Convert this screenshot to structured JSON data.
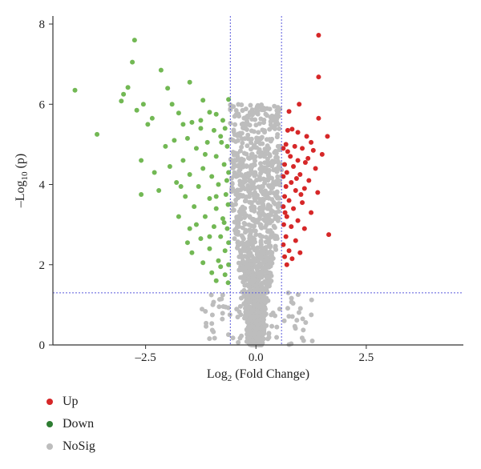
{
  "chart_data": {
    "type": "scatter",
    "title": "",
    "xlabel": "Log",
    "xlabel_sub": "2",
    "xlabel_suffix": " (Fold Change)",
    "ylabel": "–Log",
    "ylabel_sub": "10",
    "ylabel_suffix": " (p)",
    "xlim": [
      -4.6,
      4.7
    ],
    "ylim": [
      0,
      8.2
    ],
    "x_ticks": [
      -2.5,
      0.0,
      2.5
    ],
    "x_tick_labels": [
      "–2.5",
      "0.0",
      "2.5"
    ],
    "y_ticks": [
      0,
      2,
      4,
      6,
      8
    ],
    "y_tick_labels": [
      "0",
      "2",
      "4",
      "6",
      "8"
    ],
    "thresholds": {
      "x": [
        -0.58,
        0.58
      ],
      "y": 1.3
    },
    "grid": false,
    "legend_position": "bottom-left",
    "colors": {
      "Up": "#d62728",
      "Down": "#72b854",
      "NoSig": "#bdbdbd",
      "threshold": "#5a5adc"
    },
    "series": [
      {
        "name": "Up",
        "color": "#d62728",
        "points": [
          [
            1.42,
            7.72
          ],
          [
            1.42,
            6.68
          ],
          [
            0.98,
            6.0
          ],
          [
            0.75,
            5.82
          ],
          [
            1.42,
            5.65
          ],
          [
            0.72,
            5.35
          ],
          [
            0.82,
            5.38
          ],
          [
            0.95,
            5.3
          ],
          [
            1.15,
            5.2
          ],
          [
            1.62,
            5.2
          ],
          [
            1.25,
            5.05
          ],
          [
            0.68,
            5.0
          ],
          [
            0.88,
            4.95
          ],
          [
            1.05,
            4.9
          ],
          [
            1.3,
            4.85
          ],
          [
            0.62,
            4.9
          ],
          [
            1.5,
            4.75
          ],
          [
            0.78,
            4.7
          ],
          [
            0.95,
            4.6
          ],
          [
            1.12,
            4.55
          ],
          [
            0.65,
            4.5
          ],
          [
            0.85,
            4.45
          ],
          [
            1.35,
            4.4
          ],
          [
            0.7,
            4.3
          ],
          [
            1.0,
            4.25
          ],
          [
            0.62,
            4.2
          ],
          [
            1.2,
            4.1
          ],
          [
            0.8,
            4.05
          ],
          [
            0.68,
            3.95
          ],
          [
            1.1,
            3.9
          ],
          [
            0.9,
            3.85
          ],
          [
            1.4,
            3.8
          ],
          [
            0.65,
            3.7
          ],
          [
            0.75,
            3.6
          ],
          [
            1.05,
            3.55
          ],
          [
            0.62,
            3.45
          ],
          [
            0.85,
            3.4
          ],
          [
            1.25,
            3.3
          ],
          [
            0.7,
            3.2
          ],
          [
            0.95,
            3.1
          ],
          [
            0.63,
            3.0
          ],
          [
            0.8,
            2.95
          ],
          [
            1.1,
            2.9
          ],
          [
            1.65,
            2.75
          ],
          [
            0.68,
            2.7
          ],
          [
            0.9,
            2.6
          ],
          [
            0.62,
            2.5
          ],
          [
            0.75,
            2.35
          ],
          [
            1.0,
            2.3
          ],
          [
            0.65,
            2.2
          ],
          [
            0.82,
            2.15
          ],
          [
            0.7,
            2.0
          ],
          [
            1.02,
            3.75
          ],
          [
            0.72,
            4.82
          ],
          [
            1.18,
            4.65
          ],
          [
            0.92,
            4.15
          ],
          [
            0.66,
            3.3
          ]
        ]
      },
      {
        "name": "Down",
        "color": "#72b854",
        "points": [
          [
            -2.75,
            7.6
          ],
          [
            -4.1,
            6.35
          ],
          [
            -3.6,
            5.25
          ],
          [
            -2.8,
            7.05
          ],
          [
            -2.15,
            6.85
          ],
          [
            -2.9,
            6.42
          ],
          [
            -2.0,
            6.4
          ],
          [
            -1.5,
            6.55
          ],
          [
            -3.0,
            6.25
          ],
          [
            -3.05,
            6.08
          ],
          [
            -1.2,
            6.1
          ],
          [
            -2.55,
            6.0
          ],
          [
            -1.9,
            6.0
          ],
          [
            -0.62,
            6.12
          ],
          [
            -2.7,
            5.85
          ],
          [
            -1.75,
            5.78
          ],
          [
            -1.05,
            5.8
          ],
          [
            -2.35,
            5.65
          ],
          [
            -0.9,
            5.75
          ],
          [
            -1.45,
            5.55
          ],
          [
            -0.75,
            5.6
          ],
          [
            -1.65,
            5.5
          ],
          [
            -2.45,
            5.5
          ],
          [
            -1.25,
            5.4
          ],
          [
            -0.95,
            5.35
          ],
          [
            -0.7,
            5.4
          ],
          [
            -1.55,
            5.15
          ],
          [
            -1.85,
            5.1
          ],
          [
            -1.1,
            5.05
          ],
          [
            -0.8,
            5.2
          ],
          [
            -2.05,
            4.95
          ],
          [
            -1.35,
            4.9
          ],
          [
            -0.65,
            4.95
          ],
          [
            -2.6,
            4.6
          ],
          [
            -1.65,
            4.6
          ],
          [
            -0.9,
            4.7
          ],
          [
            -1.95,
            4.45
          ],
          [
            -1.2,
            4.4
          ],
          [
            -0.72,
            4.5
          ],
          [
            -1.5,
            4.25
          ],
          [
            -1.0,
            4.2
          ],
          [
            -0.62,
            4.3
          ],
          [
            -1.8,
            4.05
          ],
          [
            -2.2,
            3.85
          ],
          [
            -1.3,
            3.95
          ],
          [
            -0.85,
            4.0
          ],
          [
            -2.6,
            3.75
          ],
          [
            -1.6,
            3.7
          ],
          [
            -1.05,
            3.65
          ],
          [
            -0.68,
            3.75
          ],
          [
            -1.4,
            3.45
          ],
          [
            -0.9,
            3.4
          ],
          [
            -0.63,
            3.5
          ],
          [
            -1.75,
            3.2
          ],
          [
            -1.15,
            3.2
          ],
          [
            -0.75,
            3.15
          ],
          [
            -1.5,
            2.9
          ],
          [
            -0.95,
            2.95
          ],
          [
            -0.65,
            2.9
          ],
          [
            -1.25,
            2.65
          ],
          [
            -0.8,
            2.7
          ],
          [
            -0.62,
            2.55
          ],
          [
            -1.45,
            2.3
          ],
          [
            -1.05,
            2.4
          ],
          [
            -0.7,
            2.35
          ],
          [
            -1.2,
            2.05
          ],
          [
            -0.85,
            2.1
          ],
          [
            -0.62,
            2.0
          ],
          [
            -1.0,
            1.8
          ],
          [
            -0.7,
            1.75
          ],
          [
            -0.63,
            1.55
          ],
          [
            -0.9,
            1.6
          ],
          [
            -1.35,
            3.0
          ],
          [
            -1.55,
            2.55
          ],
          [
            -0.78,
            5.05
          ],
          [
            -1.15,
            4.75
          ],
          [
            -0.66,
            4.1
          ],
          [
            -2.3,
            4.3
          ],
          [
            -1.7,
            3.95
          ],
          [
            -0.9,
            3.7
          ],
          [
            -1.05,
            2.7
          ],
          [
            -0.8,
            1.95
          ],
          [
            -1.25,
            5.6
          ],
          [
            -0.72,
            3.05
          ]
        ]
      },
      {
        "name": "NoSig",
        "color": "#bdbdbd",
        "generated": true
      }
    ]
  }
}
